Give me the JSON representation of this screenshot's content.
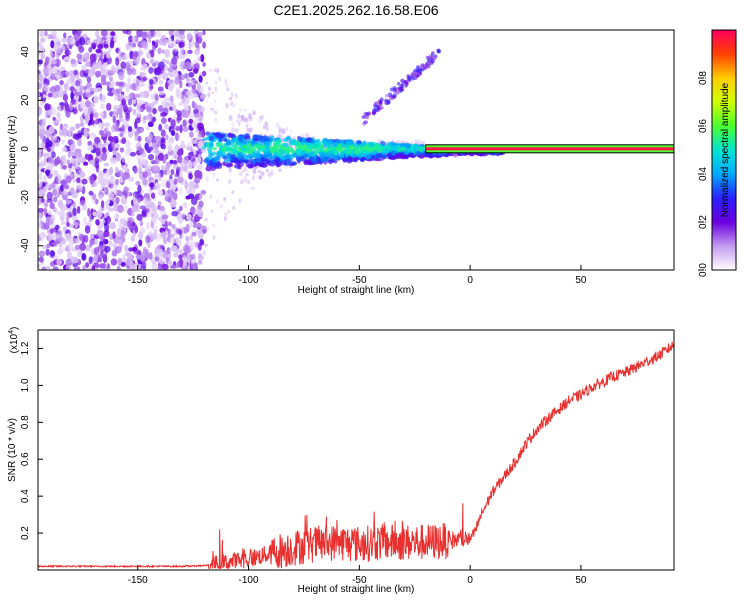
{
  "title": "C2E1.2025.262.16.58.E06",
  "chart_data": [
    {
      "type": "heatmap",
      "panel": "spectrogram",
      "xlabel": "Height of straight line (km)",
      "ylabel": "Frequency (Hz)",
      "xlim": [
        -195,
        92
      ],
      "ylim": [
        -50,
        49
      ],
      "xticks": [
        -150,
        -100,
        -50,
        0,
        50
      ],
      "yticks": [
        -40,
        -20,
        0,
        20,
        40
      ],
      "colorbar": {
        "label": "Normalized spectral amplitude",
        "range": [
          0,
          1
        ],
        "ticks": [
          0,
          0.2,
          0.4,
          0.6,
          0.8
        ],
        "tick_labels": [
          "0.0",
          "0.2",
          "0.4",
          "0.6",
          "0.8"
        ],
        "colormap": [
          "#ffffff",
          "#c39bf0",
          "#6a00e0",
          "#2a20ff",
          "#00aaff",
          "#00e5d0",
          "#4cff30",
          "#d0ff00",
          "#ffcc00",
          "#ff4000",
          "#ff0060"
        ]
      },
      "features": {
        "noise_region_end_km": -120,
        "carrier_frequency_hz": 0,
        "carrier_strong_from_km": -20,
        "secondary_tone_start_km": -48,
        "secondary_tone_end_km": -14,
        "secondary_tone_start_hz": 12,
        "secondary_tone_end_hz": 40
      }
    },
    {
      "type": "line",
      "panel": "snr",
      "xlabel": "Height of straight line (km)",
      "ylabel": "SNR (10 * v/v)",
      "y_multiplier_label": "(x10",
      "y_multiplier_exp": "4",
      "y_multiplier_close": ")",
      "xlim": [
        -195,
        92
      ],
      "ylim": [
        0,
        1.3
      ],
      "xticks": [
        -150,
        -100,
        -50,
        0,
        50
      ],
      "yticks": [
        0.2,
        0.4,
        0.6,
        0.8,
        1.0,
        1.2
      ],
      "ytick_labels": [
        "0.2",
        "0.4",
        "0.6",
        "0.8",
        "1.0",
        "1.2"
      ],
      "series": [
        {
          "name": "SNR",
          "color": "#e8302e",
          "x": [
            -195,
            -160,
            -130,
            -118,
            -100,
            -90,
            -80,
            -70,
            -60,
            -50,
            -40,
            -30,
            -20,
            -10,
            0,
            2,
            5,
            10,
            15,
            20,
            25,
            30,
            35,
            40,
            45,
            50,
            55,
            60,
            65,
            70,
            75,
            80,
            85,
            92
          ],
          "values": [
            0.02,
            0.02,
            0.02,
            0.025,
            0.06,
            0.09,
            0.12,
            0.14,
            0.15,
            0.14,
            0.15,
            0.15,
            0.15,
            0.16,
            0.17,
            0.2,
            0.3,
            0.42,
            0.5,
            0.58,
            0.68,
            0.76,
            0.82,
            0.87,
            0.92,
            0.95,
            0.99,
            1.02,
            1.05,
            1.07,
            1.1,
            1.13,
            1.16,
            1.22
          ]
        }
      ]
    }
  ]
}
